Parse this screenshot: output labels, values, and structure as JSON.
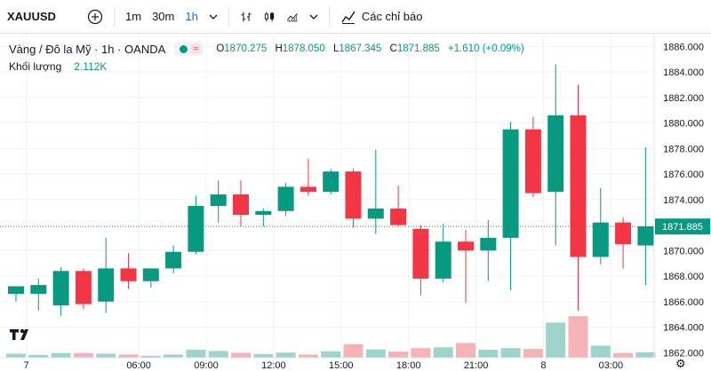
{
  "toolbar": {
    "symbol": "XAUUSD",
    "intervals": [
      "1m",
      "30m",
      "1h"
    ],
    "active_interval": "1h",
    "indicators_label": "Các chỉ báo"
  },
  "legend": {
    "title": "Vàng / Đô la Mỹ · 1h · OANDA",
    "open_key": "O",
    "open": "1870.275",
    "high_key": "H",
    "high": "1878.050",
    "low_key": "L",
    "low": "1867.345",
    "close_key": "C",
    "close": "1871.885",
    "change": "+1.610 (+0.09%)",
    "volume_label": "Khối lượng",
    "volume_value": "2.112K"
  },
  "colors": {
    "up": "#089981",
    "down": "#f23645",
    "up_vol": "#9fd4cd",
    "down_vol": "#f5b3b8"
  },
  "price_tag": "1871.885",
  "chart_data": {
    "type": "candlestick",
    "y_ticks": [
      "1886.000",
      "1884.000",
      "1882.000",
      "1880.000",
      "1878.000",
      "1876.000",
      "1874.000",
      "1872.000",
      "1870.000",
      "1868.000",
      "1866.000",
      "1864.000",
      "1862.000"
    ],
    "y_range": [
      1861.6,
      1887.0
    ],
    "x_ticks": [
      "7",
      "06:00",
      "09:00",
      "12:00",
      "15:00",
      "18:00",
      "21:00",
      "8",
      "03:00"
    ],
    "last_price": 1871.885,
    "candles": [
      {
        "o": 1866.6,
        "h": 1867.2,
        "l": 1866.0,
        "c": 1867.2,
        "v": 0.25
      },
      {
        "o": 1866.6,
        "h": 1867.8,
        "l": 1865.3,
        "c": 1867.3,
        "v": 0.18
      },
      {
        "o": 1865.7,
        "h": 1868.7,
        "l": 1864.9,
        "c": 1868.4,
        "v": 0.28
      },
      {
        "o": 1868.4,
        "h": 1868.6,
        "l": 1865.4,
        "c": 1865.8,
        "v": 0.28
      },
      {
        "o": 1866.0,
        "h": 1871.0,
        "l": 1865.1,
        "c": 1868.6,
        "v": 0.25
      },
      {
        "o": 1868.6,
        "h": 1869.8,
        "l": 1867.0,
        "c": 1867.6,
        "v": 0.2
      },
      {
        "o": 1867.6,
        "h": 1868.6,
        "l": 1867.1,
        "c": 1868.6,
        "v": 0.12
      },
      {
        "o": 1868.6,
        "h": 1870.4,
        "l": 1868.2,
        "c": 1869.9,
        "v": 0.2
      },
      {
        "o": 1869.9,
        "h": 1874.3,
        "l": 1869.7,
        "c": 1873.5,
        "v": 0.5
      },
      {
        "o": 1873.5,
        "h": 1875.5,
        "l": 1872.2,
        "c": 1874.4,
        "v": 0.42
      },
      {
        "o": 1874.4,
        "h": 1875.5,
        "l": 1871.9,
        "c": 1872.8,
        "v": 0.3
      },
      {
        "o": 1872.8,
        "h": 1873.3,
        "l": 1871.9,
        "c": 1873.1,
        "v": 0.23
      },
      {
        "o": 1873.1,
        "h": 1875.3,
        "l": 1872.7,
        "c": 1875.0,
        "v": 0.32
      },
      {
        "o": 1875.0,
        "h": 1877.2,
        "l": 1874.3,
        "c": 1874.6,
        "v": 0.2
      },
      {
        "o": 1874.6,
        "h": 1876.4,
        "l": 1874.4,
        "c": 1876.2,
        "v": 0.4
      },
      {
        "o": 1876.2,
        "h": 1876.4,
        "l": 1871.8,
        "c": 1872.5,
        "v": 0.85
      },
      {
        "o": 1872.5,
        "h": 1877.9,
        "l": 1871.3,
        "c": 1873.3,
        "v": 0.52
      },
      {
        "o": 1873.3,
        "h": 1875.1,
        "l": 1871.9,
        "c": 1872.0,
        "v": 0.38
      },
      {
        "o": 1871.7,
        "h": 1872.0,
        "l": 1866.5,
        "c": 1867.8,
        "v": 0.6
      },
      {
        "o": 1867.8,
        "h": 1872.1,
        "l": 1867.5,
        "c": 1870.7,
        "v": 0.65
      },
      {
        "o": 1870.7,
        "h": 1871.6,
        "l": 1865.9,
        "c": 1870.0,
        "v": 0.92
      },
      {
        "o": 1870.0,
        "h": 1872.4,
        "l": 1867.6,
        "c": 1871.0,
        "v": 0.5
      },
      {
        "o": 1871.0,
        "h": 1880.1,
        "l": 1866.9,
        "c": 1879.5,
        "v": 0.6
      },
      {
        "o": 1879.5,
        "h": 1880.5,
        "l": 1874.2,
        "c": 1874.5,
        "v": 0.55
      },
      {
        "o": 1874.6,
        "h": 1884.6,
        "l": 1870.4,
        "c": 1880.6,
        "v": 2.2
      },
      {
        "o": 1880.6,
        "h": 1883.0,
        "l": 1865.3,
        "c": 1869.5,
        "v": 2.6
      },
      {
        "o": 1869.5,
        "h": 1874.9,
        "l": 1868.9,
        "c": 1872.2,
        "v": 0.75
      },
      {
        "o": 1872.2,
        "h": 1872.6,
        "l": 1868.6,
        "c": 1870.5,
        "v": 0.28
      },
      {
        "o": 1870.4,
        "h": 1878.1,
        "l": 1867.3,
        "c": 1871.9,
        "v": 0.34
      }
    ]
  }
}
